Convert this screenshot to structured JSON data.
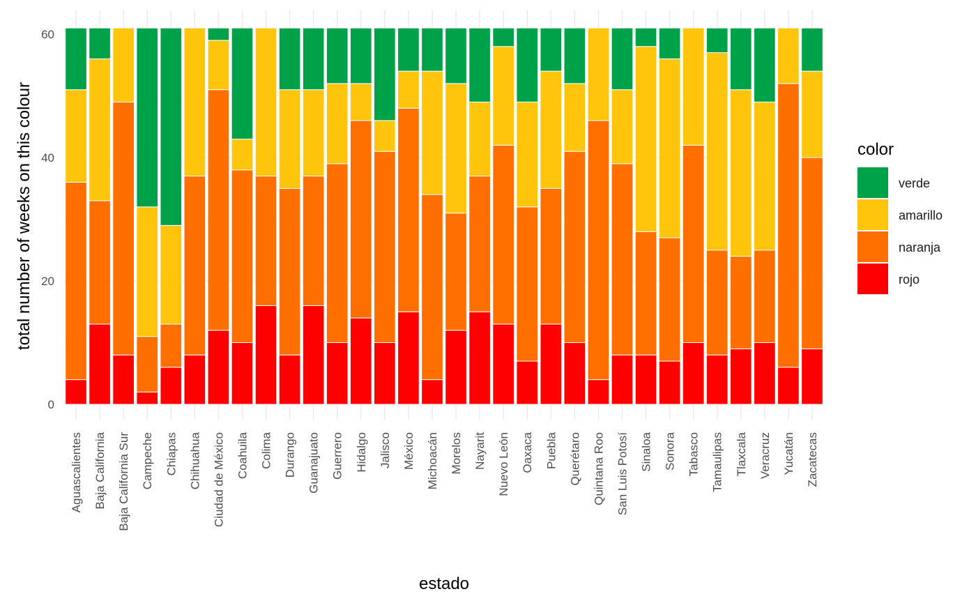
{
  "chart_data": {
    "type": "bar",
    "stacked": true,
    "xlabel": "estado",
    "ylabel": "total number of weeks on this colour",
    "ylim": [
      0,
      61
    ],
    "yticks": [
      0,
      20,
      40,
      60
    ],
    "grid": true,
    "legend": {
      "title": "color",
      "placement": "right",
      "entries": [
        "verde",
        "amarillo",
        "naranja",
        "rojo"
      ]
    },
    "colors": {
      "verde": "#00a249",
      "amarillo": "#ffc40c",
      "naranja": "#ff6f00",
      "rojo": "#ff0000"
    },
    "categories": [
      "Aguascalientes",
      "Baja California",
      "Baja California Sur",
      "Campeche",
      "Chiapas",
      "Chihuahua",
      "Ciudad de México",
      "Coahuila",
      "Colima",
      "Durango",
      "Guanajuato",
      "Guerrero",
      "Hidalgo",
      "Jalisco",
      "México",
      "Michoacán",
      "Morelos",
      "Nayarit",
      "Nuevo León",
      "Oaxaca",
      "Puebla",
      "Querétaro",
      "Quintana Roo",
      "San Luis Potosí",
      "Sinaloa",
      "Sonora",
      "Tabasco",
      "Tamaulipas",
      "Tlaxcala",
      "Veracruz",
      "Yucatán",
      "Zacatecas"
    ],
    "series": [
      {
        "name": "rojo",
        "values": [
          4,
          13,
          8,
          2,
          6,
          8,
          12,
          10,
          16,
          8,
          16,
          10,
          14,
          10,
          15,
          4,
          12,
          15,
          13,
          7,
          13,
          10,
          4,
          8,
          8,
          7,
          10,
          8,
          9,
          10,
          6,
          9
        ]
      },
      {
        "name": "naranja",
        "values": [
          32,
          20,
          41,
          9,
          7,
          29,
          39,
          28,
          21,
          27,
          21,
          29,
          32,
          31,
          33,
          30,
          19,
          22,
          29,
          25,
          22,
          31,
          42,
          31,
          20,
          20,
          32,
          17,
          15,
          15,
          46,
          31
        ]
      },
      {
        "name": "amarillo",
        "values": [
          15,
          23,
          12,
          21,
          16,
          24,
          8,
          5,
          24,
          16,
          14,
          13,
          6,
          5,
          6,
          20,
          21,
          12,
          16,
          17,
          19,
          11,
          15,
          12,
          30,
          29,
          19,
          32,
          27,
          24,
          9,
          14
        ]
      },
      {
        "name": "verde",
        "values": [
          10,
          5,
          0,
          29,
          32,
          0,
          2,
          18,
          0,
          10,
          10,
          9,
          9,
          15,
          7,
          7,
          9,
          12,
          3,
          12,
          7,
          9,
          0,
          10,
          3,
          5,
          0,
          4,
          10,
          12,
          0,
          7
        ]
      }
    ]
  }
}
